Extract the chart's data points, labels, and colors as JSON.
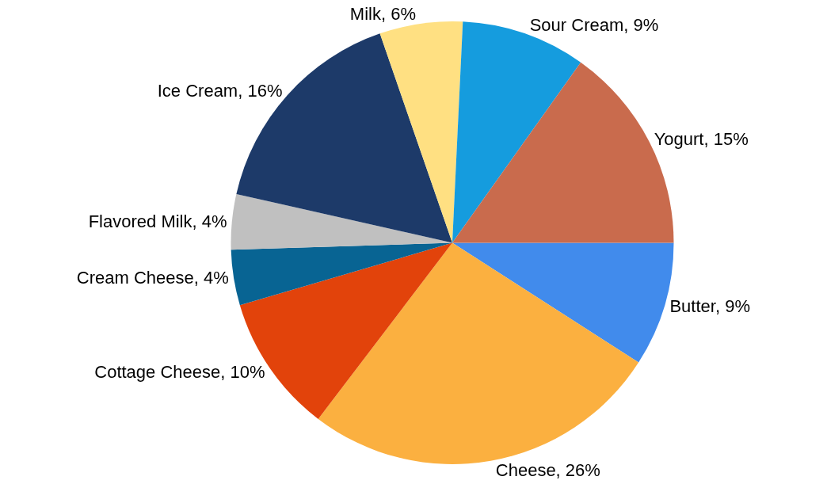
{
  "chart_data": {
    "type": "pie",
    "categories": [
      "Butter",
      "Cheese",
      "Cottage Cheese",
      "Cream Cheese",
      "Flavored Milk",
      "Ice Cream",
      "Milk",
      "Sour Cream",
      "Yogurt"
    ],
    "values": [
      9,
      26,
      10,
      4,
      4,
      16,
      6,
      9,
      15
    ],
    "value_labels": [
      "9%",
      "26%",
      "10%",
      "4%",
      "4%",
      "16%",
      "6%",
      "9%",
      "15%"
    ],
    "colors": [
      "#418bec",
      "#fbb040",
      "#e2430b",
      "#086493",
      "#c0c0c0",
      "#1d3a69",
      "#ffe082",
      "#159cde",
      "#c96b4d"
    ],
    "legend": false
  }
}
